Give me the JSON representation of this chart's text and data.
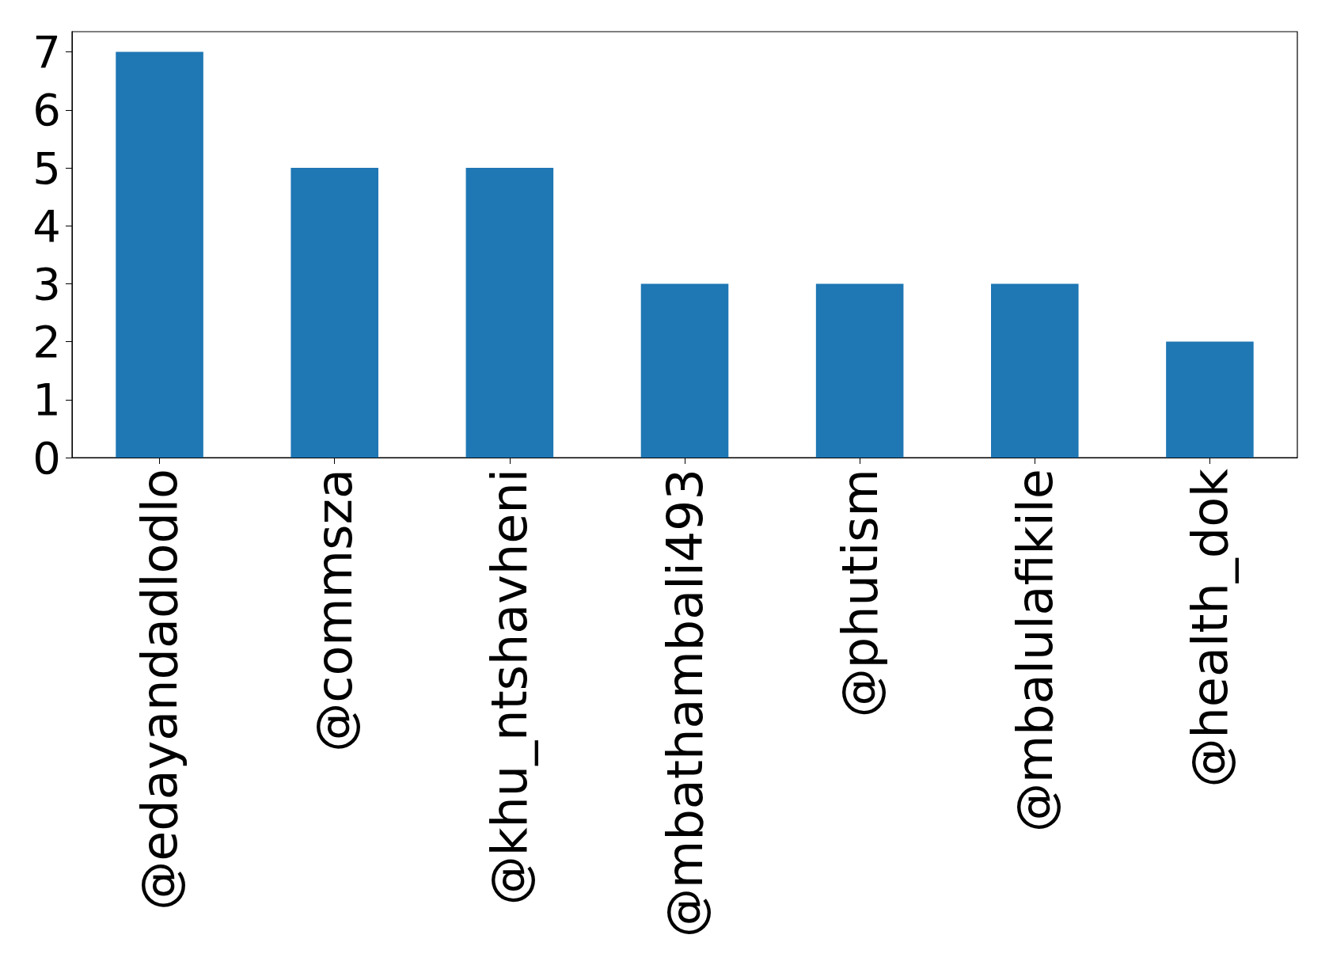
{
  "chart_data": {
    "type": "bar",
    "categories": [
      "@edayandadlodlo",
      "@commsza",
      "@khu_ntshavheni",
      "@mbathambali493",
      "@phutism",
      "@mbalulafikile",
      "@health_dok"
    ],
    "values": [
      7,
      5,
      5,
      3,
      3,
      3,
      2
    ],
    "color": "#1f77b4",
    "ylim": [
      0,
      7.35
    ],
    "yticks": [
      0,
      1,
      2,
      3,
      4,
      5,
      6,
      7
    ],
    "grid": false
  }
}
